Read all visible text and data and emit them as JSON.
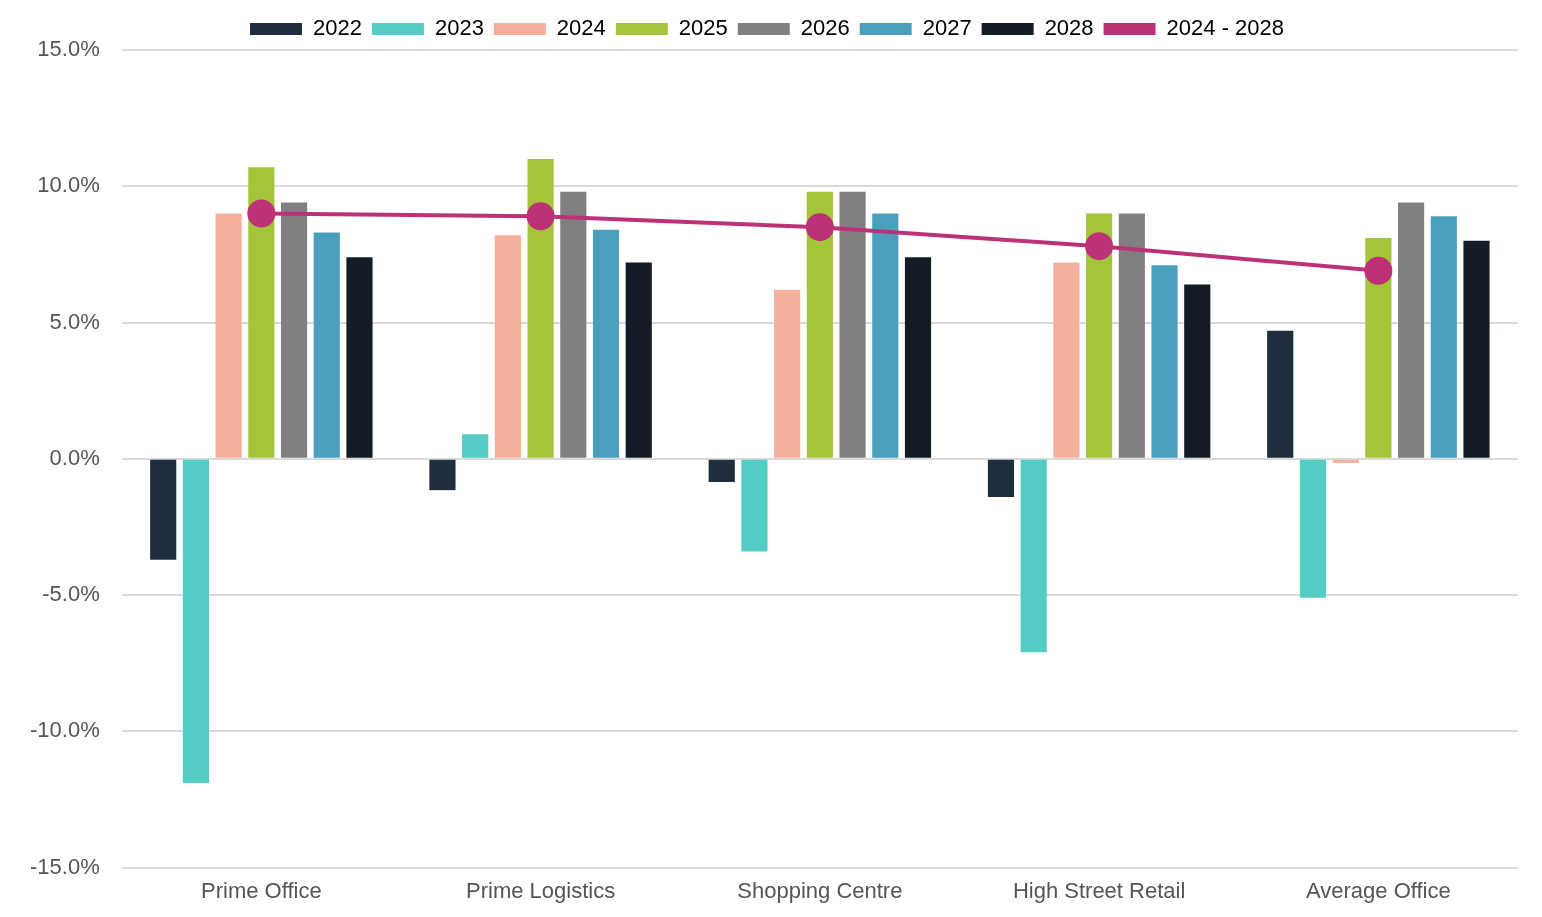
{
  "chart_data": {
    "type": "bar",
    "categories": [
      "Prime Office",
      "Prime Logistics",
      "Shopping Centre",
      "High Street Retail",
      "Average Office"
    ],
    "series": [
      {
        "name": "2022",
        "color": "#1f2d3d",
        "values": [
          -3.7,
          -1.15,
          -0.85,
          -1.4,
          4.7
        ]
      },
      {
        "name": "2023",
        "color": "#53ccc4",
        "values": [
          -11.9,
          0.9,
          -3.4,
          -7.1,
          -5.1
        ]
      },
      {
        "name": "2024",
        "color": "#f4b09c",
        "values": [
          9.0,
          8.2,
          6.2,
          7.2,
          -0.15
        ]
      },
      {
        "name": "2025",
        "color": "#a4c439",
        "values": [
          10.7,
          11.0,
          9.8,
          9.0,
          8.1
        ]
      },
      {
        "name": "2026",
        "color": "#808080",
        "values": [
          9.4,
          9.8,
          9.8,
          9.0,
          9.4
        ]
      },
      {
        "name": "2027",
        "color": "#4aa0bc",
        "values": [
          8.3,
          8.4,
          9.0,
          7.1,
          8.9
        ]
      },
      {
        "name": "2028",
        "color": "#131b26",
        "values": [
          7.4,
          7.2,
          7.4,
          6.4,
          8.0
        ]
      },
      {
        "name": "2024 - 2028",
        "type": "line",
        "color": "#bd3276",
        "values": [
          9.0,
          8.9,
          8.5,
          7.8,
          6.9
        ]
      }
    ],
    "ylim": [
      -15,
      15
    ],
    "yticks": [
      {
        "value": -15,
        "label": "-15.0%"
      },
      {
        "value": -10,
        "label": "-10.0%"
      },
      {
        "value": -5,
        "label": "-5.0%"
      },
      {
        "value": 0,
        "label": "0.0%"
      },
      {
        "value": 5,
        "label": "5.0%"
      },
      {
        "value": 10,
        "label": "10.0%"
      },
      {
        "value": 15,
        "label": "15.0%"
      }
    ],
    "grid": "y",
    "legend": "top",
    "marker": "circle"
  }
}
